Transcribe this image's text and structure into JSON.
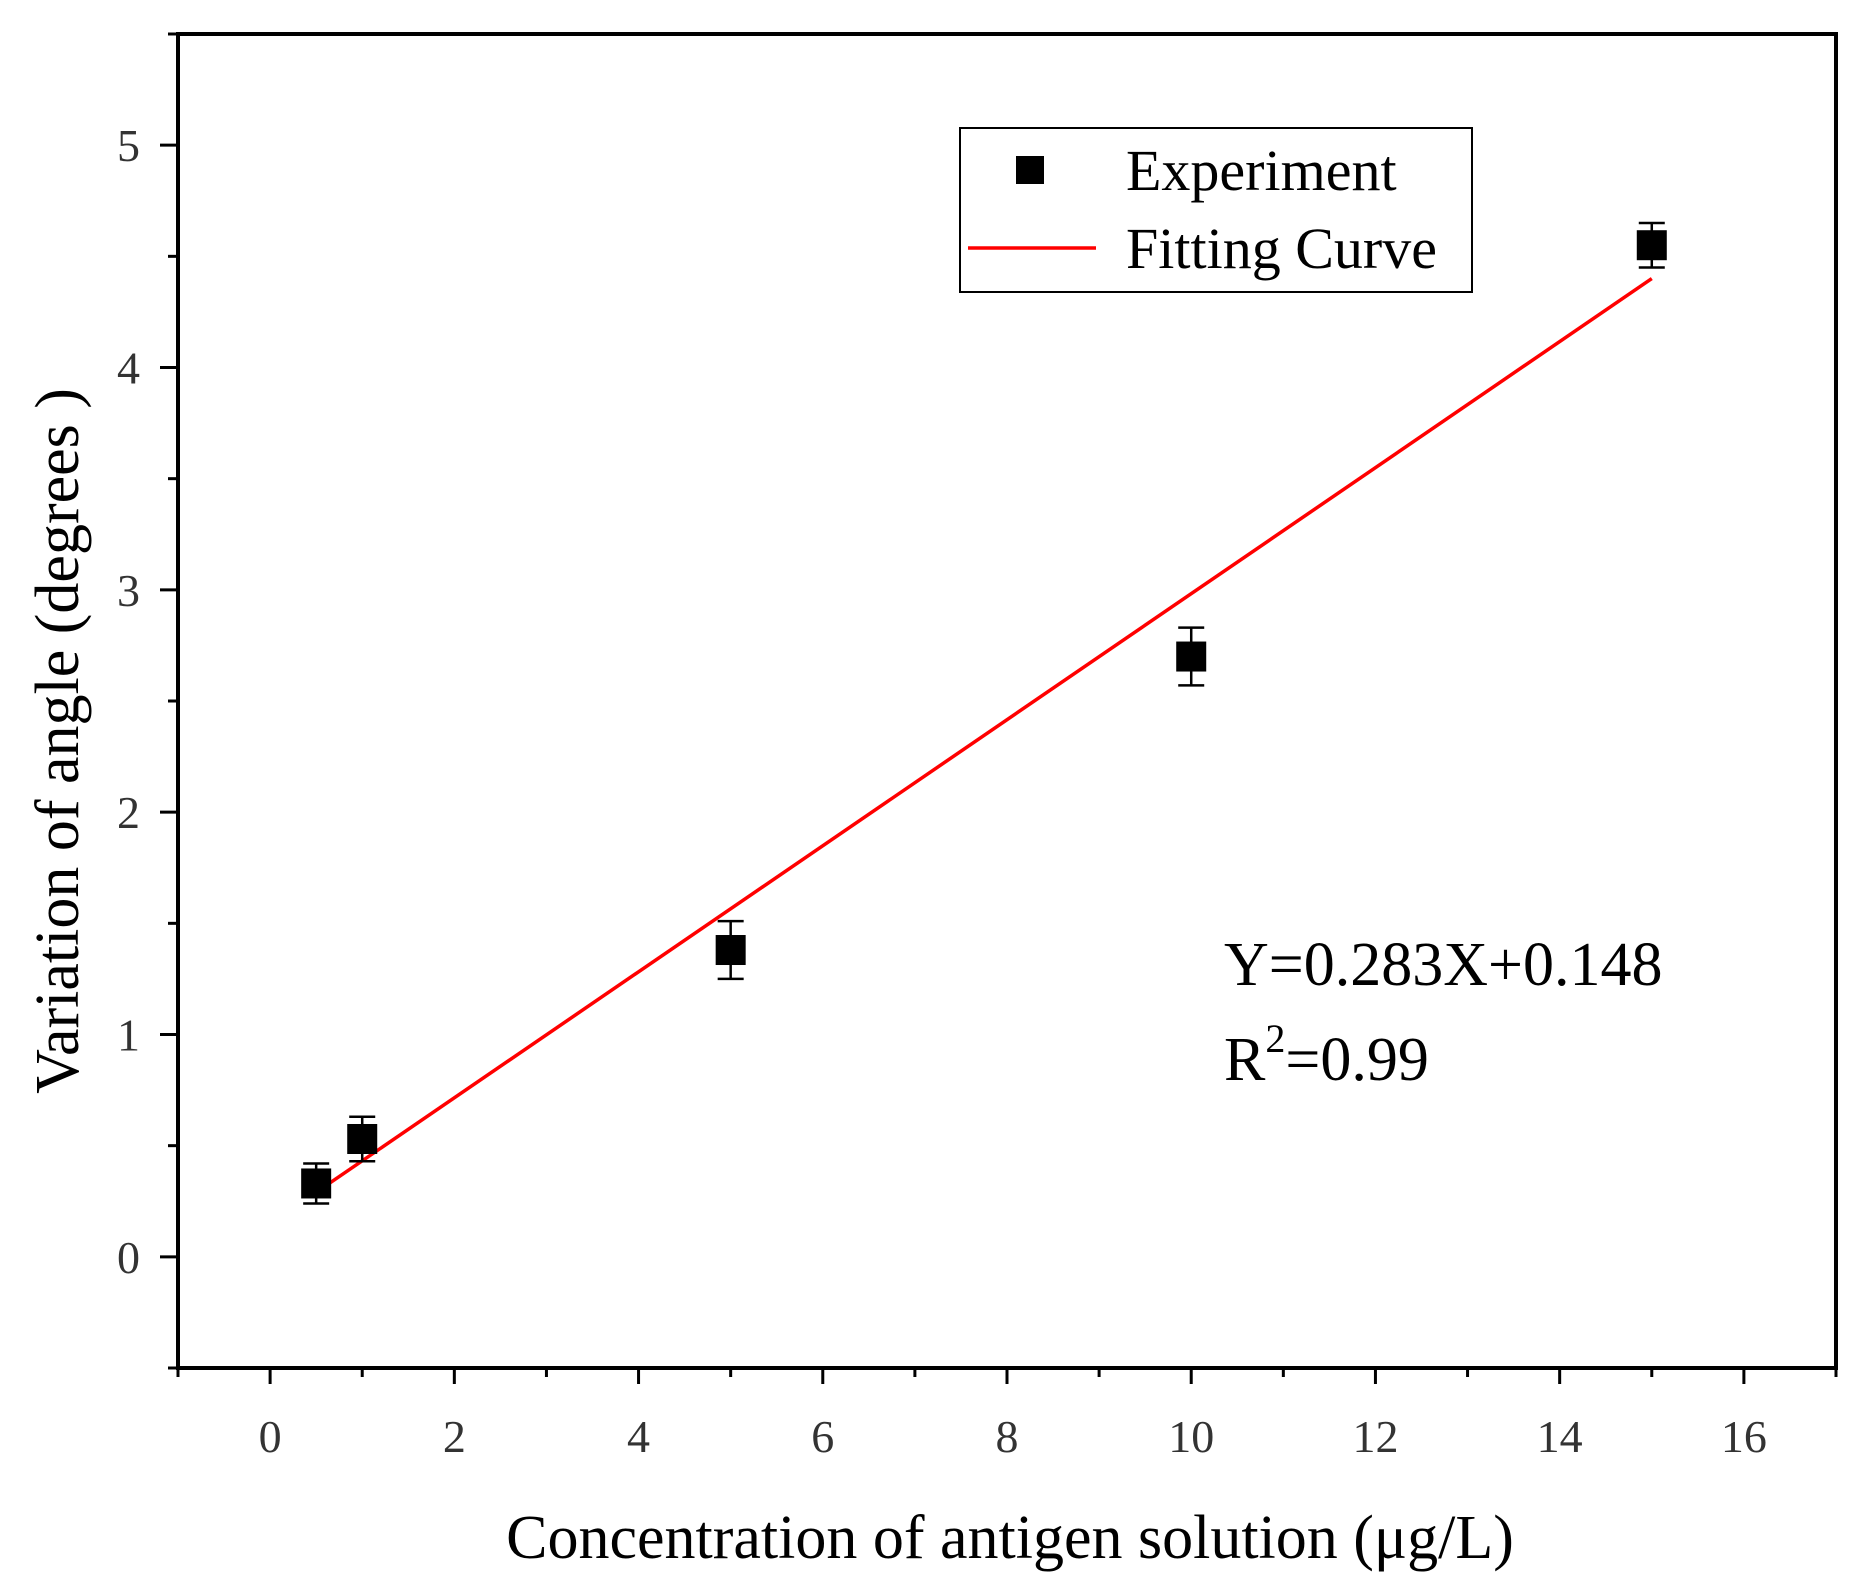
{
  "chart_data": {
    "type": "scatter",
    "title": "",
    "xlabel": "Concentration of antigen solution (μg/L)",
    "ylabel": "Variation  of angle (degrees )",
    "xlim": [
      -1,
      17
    ],
    "ylim": [
      -0.5,
      5.5
    ],
    "xticks": [
      0,
      2,
      4,
      6,
      8,
      10,
      12,
      14,
      16
    ],
    "yticks": [
      0,
      1,
      2,
      3,
      4,
      5
    ],
    "grid": false,
    "legend_position": "top-right",
    "series": [
      {
        "name": "Experiment",
        "kind": "scatter",
        "marker": "square",
        "color": "#000000",
        "x": [
          0.5,
          1,
          5,
          10,
          15
        ],
        "y": [
          0.33,
          0.53,
          1.38,
          2.7,
          4.55
        ],
        "yerr": [
          0.09,
          0.1,
          0.13,
          0.13,
          0.1
        ]
      },
      {
        "name": "Fitting Curve",
        "kind": "line",
        "color": "#ff0000",
        "x": [
          0.5,
          15
        ],
        "y": [
          0.29,
          4.4
        ]
      }
    ],
    "annotations": {
      "equation": "Y=0.283X+0.148",
      "r2_prefix": "R",
      "r2_superscript": "2",
      "r2_value": "=0.99"
    }
  }
}
